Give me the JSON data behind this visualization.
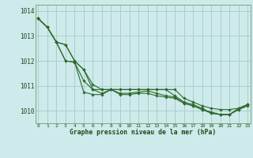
{
  "xlabel": "Graphe pression niveau de la mer (hPa)",
  "hours": [
    0,
    1,
    2,
    3,
    4,
    5,
    6,
    7,
    8,
    9,
    10,
    11,
    12,
    13,
    14,
    15,
    16,
    17,
    18,
    19,
    20,
    21,
    22,
    23
  ],
  "series": [
    [
      1013.7,
      1013.35,
      1012.75,
      1012.65,
      1012.0,
      1011.65,
      1010.85,
      1010.85,
      1010.85,
      1010.85,
      1010.85,
      1010.85,
      1010.85,
      1010.85,
      1010.85,
      1010.85,
      1010.5,
      1010.35,
      1010.2,
      1010.1,
      1010.05,
      1010.05,
      1010.1,
      1010.25
    ],
    [
      1013.7,
      1013.35,
      1012.75,
      1012.65,
      1012.0,
      1011.65,
      1011.05,
      1010.85,
      1010.85,
      1010.85,
      1010.85,
      1010.85,
      1010.85,
      1010.85,
      1010.85,
      1010.6,
      1010.35,
      1010.25,
      1010.1,
      1009.9,
      1009.85,
      1009.85,
      1010.1,
      1010.25
    ],
    [
      1013.7,
      1013.35,
      1012.75,
      1012.0,
      1011.95,
      1011.2,
      1010.85,
      1010.7,
      1010.85,
      1010.7,
      1010.7,
      1010.75,
      1010.8,
      1010.7,
      1010.6,
      1010.55,
      1010.3,
      1010.2,
      1010.05,
      1009.95,
      1009.85,
      1009.85,
      1010.05,
      1010.2
    ],
    [
      1013.7,
      1013.35,
      1012.75,
      1012.0,
      1011.95,
      1010.75,
      1010.65,
      1010.65,
      1010.85,
      1010.65,
      1010.65,
      1010.7,
      1010.7,
      1010.6,
      1010.55,
      1010.5,
      1010.3,
      1010.2,
      1010.05,
      1009.9,
      1009.85,
      1009.85,
      1010.05,
      1010.25
    ]
  ],
  "line_color": "#2d6a2d",
  "marker": "D",
  "marker_size": 1.8,
  "bg_color": "#ceeaea",
  "grid_color": "#aacece",
  "axis_label_color": "#1a4a1a",
  "ylim_min": 1009.5,
  "ylim_max": 1014.25,
  "yticks": [
    1010,
    1011,
    1012,
    1013,
    1014
  ],
  "xticks": [
    0,
    1,
    2,
    3,
    4,
    5,
    6,
    7,
    8,
    9,
    10,
    11,
    12,
    13,
    14,
    15,
    16,
    17,
    18,
    19,
    20,
    21,
    22,
    23
  ]
}
